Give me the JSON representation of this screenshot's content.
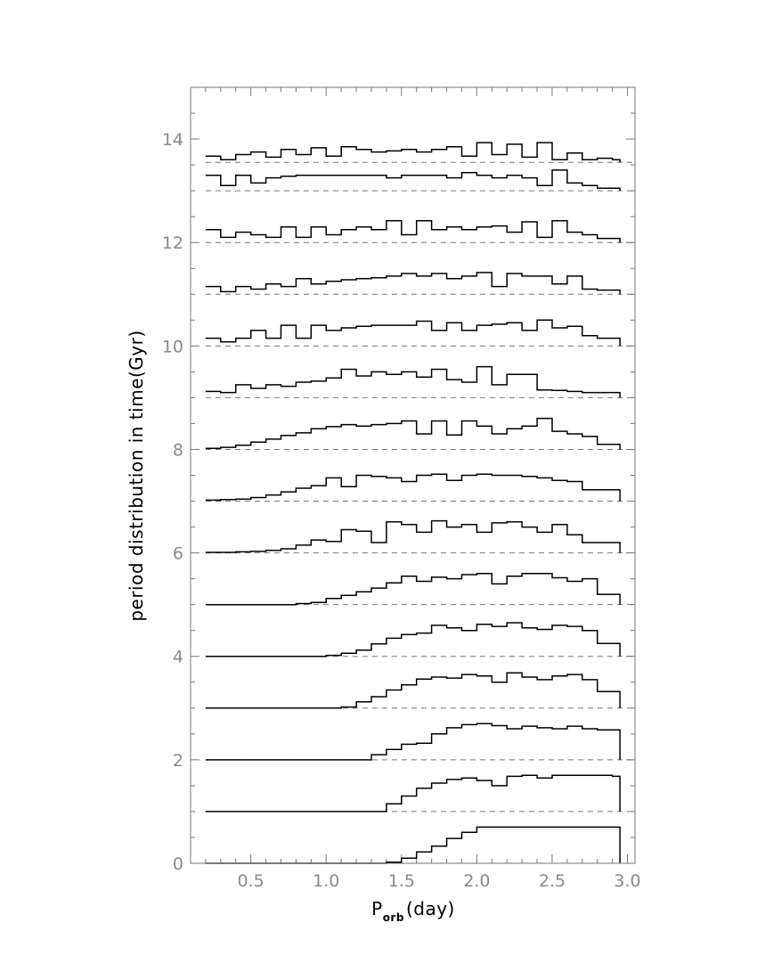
{
  "chart_data": {
    "type": "line",
    "style": "stepped histograms, offset vertically per time (one per Gyr)",
    "xlabel": {
      "main": "P",
      "sub": "orb",
      "tail": "(day)"
    },
    "ylabel": "period distribution in time(Gyr)",
    "xlim": [
      0.1,
      3.05
    ],
    "ylim": [
      0,
      15
    ],
    "xticks_major": [
      0.5,
      1.0,
      1.5,
      2.0,
      2.5,
      3.0
    ],
    "xtick_labels": [
      "0.5",
      "1.0",
      "1.5",
      "2.0",
      "2.5",
      "3.0"
    ],
    "yticks_major": [
      0,
      2,
      4,
      6,
      8,
      10,
      12,
      14
    ],
    "ytick_labels": [
      "0",
      "2",
      "4",
      "6",
      "8",
      "10",
      "12",
      "14"
    ],
    "grid": false,
    "bins": {
      "start": 0.2,
      "width": 0.1,
      "count": 28,
      "end": 2.95
    },
    "series": [
      {
        "offset": 0,
        "values": [
          0,
          0,
          0,
          0,
          0,
          0,
          0,
          0,
          0,
          0,
          0,
          0,
          0.02,
          0.1,
          0.22,
          0.33,
          0.48,
          0.6,
          0.7,
          0.7,
          0.7,
          0.7,
          0.7,
          0.7,
          0.7,
          0.7,
          0.7,
          0.7
        ]
      },
      {
        "offset": 1,
        "values": [
          0,
          0,
          0,
          0,
          0,
          0,
          0,
          0,
          0,
          0,
          0,
          0,
          0.15,
          0.3,
          0.45,
          0.55,
          0.62,
          0.65,
          0.6,
          0.5,
          0.68,
          0.7,
          0.65,
          0.7,
          0.7,
          0.7,
          0.7,
          0.68
        ]
      },
      {
        "offset": 2,
        "values": [
          0,
          0,
          0,
          0,
          0,
          0,
          0,
          0,
          0,
          0,
          0,
          0.1,
          0.2,
          0.3,
          0.32,
          0.5,
          0.62,
          0.68,
          0.7,
          0.66,
          0.6,
          0.65,
          0.62,
          0.6,
          0.65,
          0.6,
          0.58,
          0.58
        ]
      },
      {
        "offset": 3,
        "values": [
          0,
          0,
          0,
          0,
          0,
          0,
          0,
          0,
          0,
          0.02,
          0.12,
          0.22,
          0.35,
          0.45,
          0.56,
          0.6,
          0.58,
          0.65,
          0.62,
          0.5,
          0.68,
          0.6,
          0.55,
          0.62,
          0.65,
          0.55,
          0.32,
          0.32
        ]
      },
      {
        "offset": 4,
        "values": [
          0,
          0,
          0,
          0,
          0,
          0,
          0,
          0,
          0.02,
          0.06,
          0.12,
          0.24,
          0.35,
          0.42,
          0.45,
          0.6,
          0.55,
          0.5,
          0.62,
          0.58,
          0.65,
          0.55,
          0.52,
          0.6,
          0.58,
          0.5,
          0.25,
          0.25
        ]
      },
      {
        "offset": 5,
        "values": [
          0,
          0,
          0,
          0,
          0,
          0,
          0.02,
          0.04,
          0.12,
          0.18,
          0.25,
          0.32,
          0.42,
          0.55,
          0.45,
          0.53,
          0.5,
          0.58,
          0.6,
          0.4,
          0.55,
          0.6,
          0.6,
          0.52,
          0.45,
          0.5,
          0.2,
          0.2
        ]
      },
      {
        "offset": 6,
        "values": [
          0.01,
          0.01,
          0.02,
          0.03,
          0.05,
          0.08,
          0.15,
          0.25,
          0.22,
          0.45,
          0.42,
          0.2,
          0.6,
          0.55,
          0.4,
          0.62,
          0.5,
          0.55,
          0.4,
          0.58,
          0.6,
          0.5,
          0.4,
          0.55,
          0.35,
          0.2,
          0.2,
          0.2
        ]
      },
      {
        "offset": 7,
        "values": [
          0.02,
          0.03,
          0.04,
          0.07,
          0.12,
          0.18,
          0.25,
          0.3,
          0.45,
          0.28,
          0.5,
          0.48,
          0.45,
          0.38,
          0.5,
          0.52,
          0.4,
          0.5,
          0.52,
          0.5,
          0.5,
          0.48,
          0.45,
          0.4,
          0.38,
          0.22,
          0.22,
          0.22
        ]
      },
      {
        "offset": 8,
        "values": [
          0.02,
          0.04,
          0.08,
          0.14,
          0.2,
          0.27,
          0.32,
          0.4,
          0.44,
          0.48,
          0.45,
          0.48,
          0.5,
          0.55,
          0.3,
          0.55,
          0.28,
          0.55,
          0.45,
          0.3,
          0.4,
          0.45,
          0.6,
          0.35,
          0.3,
          0.25,
          0.1,
          0.1
        ]
      },
      {
        "offset": 9,
        "values": [
          0.12,
          0.1,
          0.25,
          0.18,
          0.25,
          0.22,
          0.3,
          0.32,
          0.38,
          0.55,
          0.42,
          0.5,
          0.45,
          0.5,
          0.4,
          0.55,
          0.35,
          0.3,
          0.6,
          0.25,
          0.45,
          0.45,
          0.15,
          0.14,
          0.12,
          0.1,
          0.1,
          0.1
        ]
      },
      {
        "offset": 10,
        "values": [
          0.15,
          0.08,
          0.15,
          0.3,
          0.15,
          0.4,
          0.15,
          0.4,
          0.3,
          0.35,
          0.38,
          0.4,
          0.4,
          0.4,
          0.48,
          0.3,
          0.45,
          0.3,
          0.4,
          0.42,
          0.45,
          0.3,
          0.5,
          0.35,
          0.38,
          0.2,
          0.15,
          0.15
        ]
      },
      {
        "offset": 11,
        "values": [
          0.15,
          0.05,
          0.15,
          0.1,
          0.2,
          0.15,
          0.3,
          0.2,
          0.25,
          0.28,
          0.3,
          0.32,
          0.35,
          0.4,
          0.35,
          0.4,
          0.3,
          0.35,
          0.42,
          0.15,
          0.4,
          0.35,
          0.35,
          0.2,
          0.35,
          0.1,
          0.08,
          0.08
        ]
      },
      {
        "offset": 12,
        "values": [
          0.25,
          0.1,
          0.2,
          0.15,
          0.1,
          0.3,
          0.1,
          0.3,
          0.15,
          0.25,
          0.3,
          0.25,
          0.42,
          0.15,
          0.42,
          0.25,
          0.3,
          0.25,
          0.3,
          0.32,
          0.2,
          0.4,
          0.1,
          0.42,
          0.2,
          0.15,
          0.08,
          0.08
        ]
      },
      {
        "offset": 13,
        "values": [
          0.3,
          0.1,
          0.3,
          0.15,
          0.25,
          0.28,
          0.3,
          0.3,
          0.3,
          0.3,
          0.3,
          0.3,
          0.25,
          0.3,
          0.3,
          0.3,
          0.25,
          0.35,
          0.3,
          0.25,
          0.3,
          0.25,
          0.1,
          0.4,
          0.15,
          0.1,
          0.05,
          0.05
        ]
      },
      {
        "offset": 13.55,
        "values": [
          0.12,
          0.05,
          0.15,
          0.2,
          0.1,
          0.25,
          0.15,
          0.28,
          0.12,
          0.3,
          0.25,
          0.2,
          0.22,
          0.25,
          0.2,
          0.25,
          0.3,
          0.12,
          0.38,
          0.15,
          0.35,
          0.1,
          0.38,
          0.05,
          0.18,
          0.05,
          0.08,
          0.05
        ]
      }
    ]
  }
}
